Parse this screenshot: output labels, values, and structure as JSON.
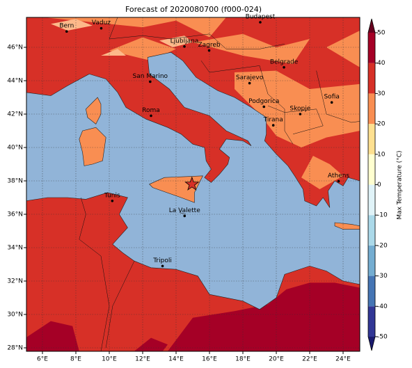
{
  "title": "Forecast of 2020080700 (f000-024)",
  "map": {
    "cities": [
      "Bern",
      "Vaduz",
      "Budapest",
      "Ljubljana",
      "Zagreb",
      "Belgrade",
      "San Marino",
      "Sarajevo",
      "Roma",
      "Podgorica",
      "Skopje",
      "Sofia",
      "Tirana",
      "Athens",
      "Tunis",
      "La Valette",
      "Tripoli"
    ],
    "lon_ticks": [
      {
        "value": 6,
        "label": "6°E"
      },
      {
        "value": 8,
        "label": "8°E"
      },
      {
        "value": 10,
        "label": "10°E"
      },
      {
        "value": 12,
        "label": "12°E"
      },
      {
        "value": 14,
        "label": "14°E"
      },
      {
        "value": 16,
        "label": "16°E"
      },
      {
        "value": 18,
        "label": "18°E"
      },
      {
        "value": 20,
        "label": "20°E"
      },
      {
        "value": 22,
        "label": "22°E"
      },
      {
        "value": 24,
        "label": "24°E"
      }
    ],
    "lat_ticks": [
      {
        "value": 28,
        "label": "28°N"
      },
      {
        "value": 30,
        "label": "30°N"
      },
      {
        "value": 32,
        "label": "32°N"
      },
      {
        "value": 34,
        "label": "34°N"
      },
      {
        "value": 36,
        "label": "36°N"
      },
      {
        "value": 38,
        "label": "38°N"
      },
      {
        "value": 40,
        "label": "40°N"
      },
      {
        "value": 42,
        "label": "42°N"
      },
      {
        "value": 44,
        "label": "44°N"
      },
      {
        "value": 46,
        "label": "46°N"
      }
    ]
  },
  "colorbar": {
    "label": "Max Temperature (°C)",
    "ticks": [
      -50,
      -40,
      -30,
      -20,
      -10,
      0,
      10,
      20,
      30,
      40,
      50
    ]
  }
}
